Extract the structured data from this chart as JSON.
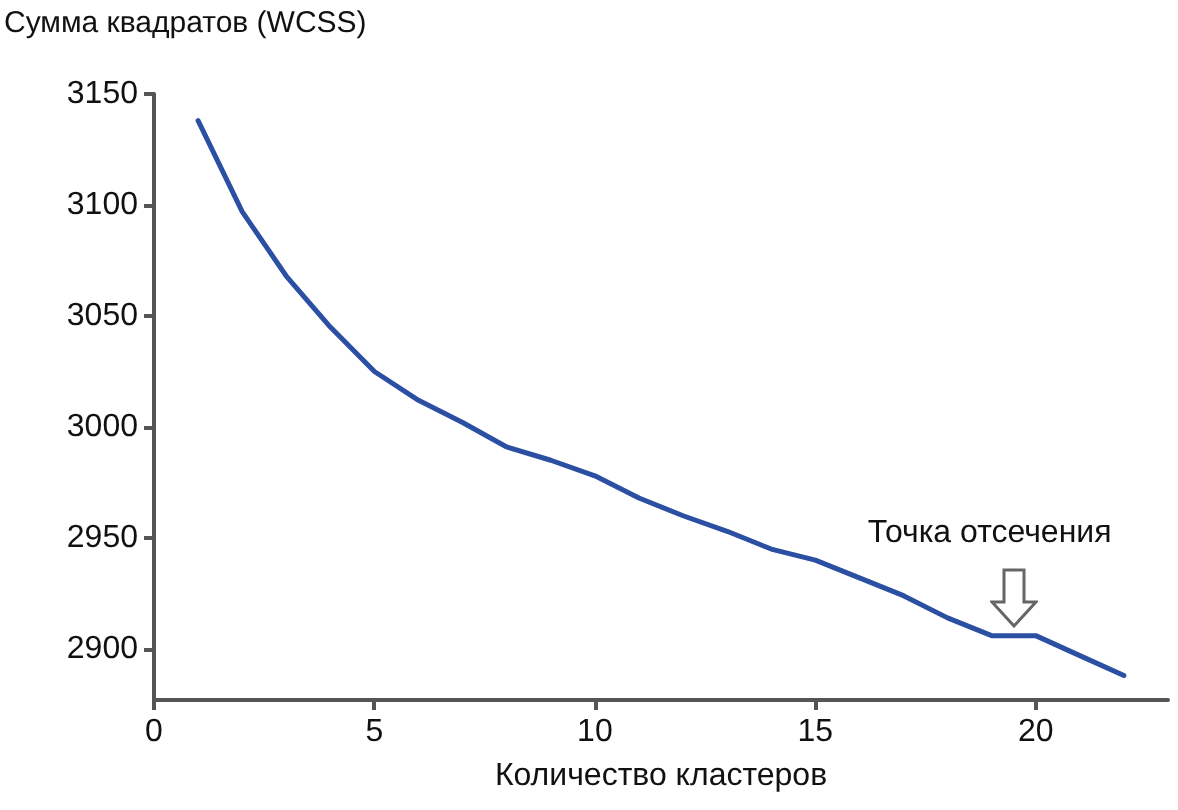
{
  "chart_data": {
    "type": "line",
    "ylabel": "Сумма квадратов (WCSS)",
    "xlabel": "Количество кластеров",
    "x": [
      1,
      2,
      3,
      4,
      5,
      6,
      7,
      8,
      9,
      10,
      11,
      12,
      13,
      14,
      15,
      16,
      17,
      18,
      19,
      20,
      21,
      22
    ],
    "series": [
      {
        "color": "#2b4fa3",
        "values": [
          3138,
          3097,
          3068,
          3045,
          3025,
          3012,
          3002,
          2991,
          2985,
          2978,
          2968,
          2960,
          2953,
          2945,
          2940,
          2932,
          2924,
          2914,
          2906,
          2906,
          2897,
          2888
        ]
      }
    ],
    "xlim": [
      0,
      23
    ],
    "xticks": [
      0,
      5,
      10,
      15,
      20
    ],
    "ylim": [
      2877,
      3150
    ],
    "yticks": [
      2900,
      2950,
      3000,
      3050,
      3100,
      3150
    ],
    "grid": false,
    "marker": "none",
    "line_style": "solid",
    "annotations": [
      {
        "text": "Точка отсечения",
        "x": 19.5,
        "y": 2906
      }
    ]
  }
}
